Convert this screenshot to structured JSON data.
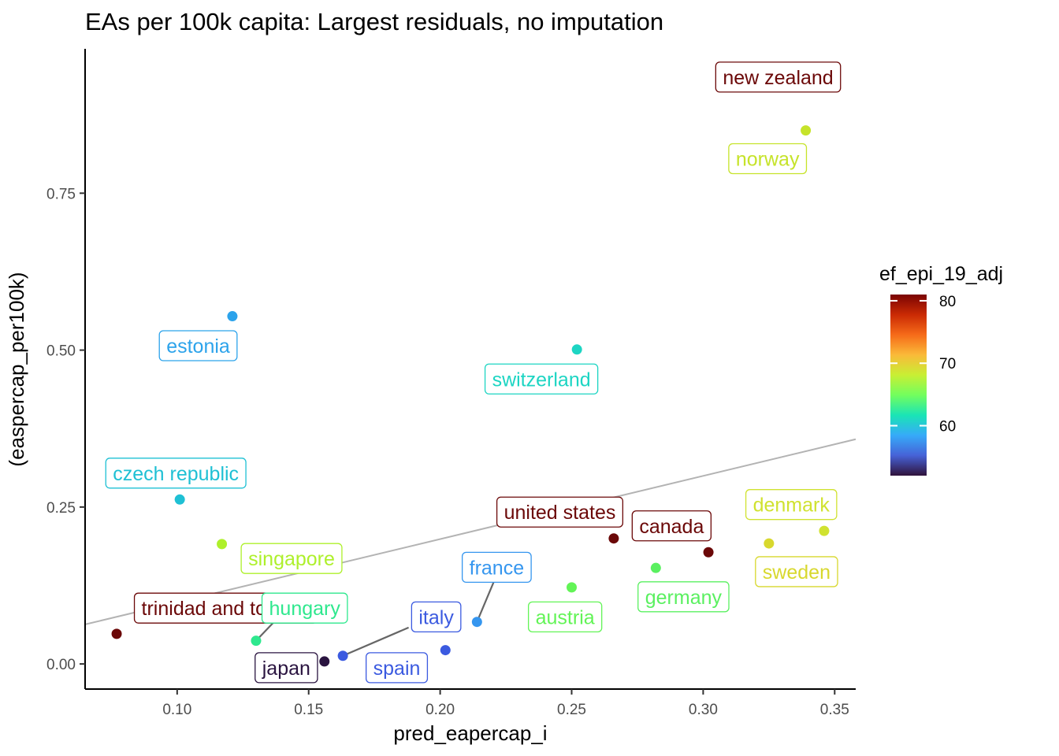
{
  "chart_data": {
    "type": "scatter",
    "title": "EAs per 100k capita: Largest residuals, no imputation",
    "xlabel": "pred_eapercap_i",
    "ylabel": "(easpercap_per100k)",
    "xlim": [
      0.065,
      0.358
    ],
    "ylim": [
      -0.04,
      0.98
    ],
    "x_ticks": [
      0.1,
      0.15,
      0.2,
      0.25,
      0.3,
      0.35
    ],
    "x_tick_labels": [
      "0.10",
      "0.15",
      "0.20",
      "0.25",
      "0.30",
      "0.35"
    ],
    "y_ticks": [
      0.0,
      0.25,
      0.5,
      0.75
    ],
    "y_tick_labels": [
      "0.00",
      "0.25",
      "0.50",
      "0.75"
    ],
    "grid": false,
    "trend_line": {
      "x": [
        0.065,
        0.358
      ],
      "y": [
        0.063,
        0.358
      ],
      "color": "#b3b3b3"
    },
    "color_scale": {
      "title": "ef_epi_19_adj",
      "min": 52,
      "max": 81,
      "ticks": [
        60,
        70,
        80
      ],
      "tick_labels": [
        "60",
        "70",
        "80"
      ],
      "gradient": [
        "#30123b",
        "#4662d7",
        "#36aaf9",
        "#1ae4b6",
        "#72fe5e",
        "#c8ef34",
        "#faba39",
        "#f66b19",
        "#ca2a04",
        "#7a0403"
      ],
      "placement": "right"
    },
    "points": [
      {
        "name": "new zealand",
        "x": 0.339,
        "y": 0.85,
        "color": "#c6e32a",
        "label_text": "new zealand",
        "label_color": "#6b0808",
        "label_x": 0.3285,
        "label_y": 0.935
      },
      {
        "name": "norway",
        "x": 0.339,
        "y": 0.85,
        "color": "#c6e32a",
        "label_text": "norway",
        "label_color": "#c6e32a",
        "label_x": 0.3245,
        "label_y": 0.805
      },
      {
        "name": "estonia",
        "x": 0.121,
        "y": 0.554,
        "color": "#2ca3eb",
        "label_text": "estonia",
        "label_color": "#2ca3eb",
        "label_x": 0.108,
        "label_y": 0.507
      },
      {
        "name": "switzerland",
        "x": 0.252,
        "y": 0.501,
        "color": "#1dd5c3",
        "label_text": "switzerland",
        "label_color": "#1dd5c3",
        "label_x": 0.2385,
        "label_y": 0.454
      },
      {
        "name": "czech republic",
        "x": 0.101,
        "y": 0.262,
        "color": "#1fc0d4",
        "label_text": "czech republic",
        "label_color": "#1fc0d4",
        "label_x": 0.0995,
        "label_y": 0.304
      },
      {
        "name": "singapore",
        "x": 0.117,
        "y": 0.191,
        "color": "#aef02b",
        "label_text": "singapore",
        "label_color": "#aef02b",
        "label_x": 0.1435,
        "label_y": 0.168
      },
      {
        "name": "trinidad and tobago",
        "x": 0.077,
        "y": 0.048,
        "color": "#6b0808",
        "label_text": "trinidad and tobago",
        "label_color": "#6b0808",
        "label_x": 0.1185,
        "label_y": 0.089
      },
      {
        "name": "hungary",
        "x": 0.13,
        "y": 0.037,
        "color": "#2ee88e",
        "label_text": "hungary",
        "label_color": "#2ee88e",
        "label_x": 0.1485,
        "label_y": 0.089
      },
      {
        "name": "japan",
        "x": 0.156,
        "y": 0.004,
        "color": "#2a1440",
        "label_text": "japan",
        "label_color": "#2a1440",
        "label_x": 0.1415,
        "label_y": -0.006
      },
      {
        "name": "italy",
        "x": 0.163,
        "y": 0.013,
        "color": "#3b5ae0",
        "label_text": "italy",
        "label_color": "#3b5ae0",
        "label_x": 0.1985,
        "label_y": 0.075
      },
      {
        "name": "spain",
        "x": 0.202,
        "y": 0.022,
        "color": "#3b5ae0",
        "label_text": "spain",
        "label_color": "#3b5ae0",
        "label_x": 0.1835,
        "label_y": -0.006
      },
      {
        "name": "france",
        "x": 0.214,
        "y": 0.067,
        "color": "#3596ef",
        "label_text": "france",
        "label_color": "#3596ef",
        "label_x": 0.2215,
        "label_y": 0.154
      },
      {
        "name": "austria",
        "x": 0.25,
        "y": 0.122,
        "color": "#62f456",
        "label_text": "austria",
        "label_color": "#62f456",
        "label_x": 0.2475,
        "label_y": 0.075
      },
      {
        "name": "united states",
        "x": 0.266,
        "y": 0.2,
        "color": "#6b0808",
        "label_text": "united states",
        "label_color": "#6b0808",
        "label_x": 0.2455,
        "label_y": 0.242
      },
      {
        "name": "canada",
        "x": 0.302,
        "y": 0.178,
        "color": "#6b0808",
        "label_text": "canada",
        "label_color": "#6b0808",
        "label_x": 0.288,
        "label_y": 0.22
      },
      {
        "name": "germany",
        "x": 0.282,
        "y": 0.153,
        "color": "#5af060",
        "label_text": "germany",
        "label_color": "#5af060",
        "label_x": 0.2925,
        "label_y": 0.107
      },
      {
        "name": "sweden",
        "x": 0.325,
        "y": 0.192,
        "color": "#d8d82e",
        "label_text": "sweden",
        "label_color": "#d8d82e",
        "label_x": 0.3355,
        "label_y": 0.147
      },
      {
        "name": "denmark",
        "x": 0.346,
        "y": 0.212,
        "color": "#d0e230",
        "label_text": "denmark",
        "label_color": "#d0e230",
        "label_x": 0.3335,
        "label_y": 0.254
      }
    ],
    "connectors": [
      {
        "name": "hungary",
        "from": [
          0.13,
          0.037
        ],
        "to": [
          0.1375,
          0.07
        ]
      },
      {
        "name": "italy",
        "from": [
          0.163,
          0.013
        ],
        "to": [
          0.188,
          0.058
        ]
      },
      {
        "name": "france",
        "from": [
          0.214,
          0.067
        ],
        "to": [
          0.2205,
          0.132
        ]
      }
    ]
  }
}
